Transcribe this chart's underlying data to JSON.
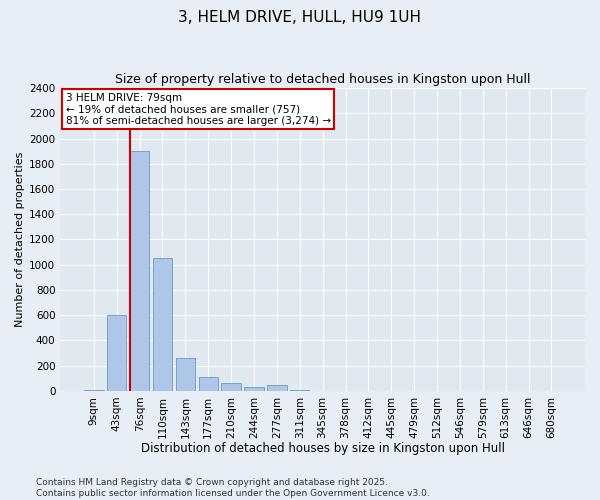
{
  "title": "3, HELM DRIVE, HULL, HU9 1UH",
  "subtitle": "Size of property relative to detached houses in Kingston upon Hull",
  "xlabel": "Distribution of detached houses by size in Kingston upon Hull",
  "ylabel": "Number of detached properties",
  "categories": [
    "9sqm",
    "43sqm",
    "76sqm",
    "110sqm",
    "143sqm",
    "177sqm",
    "210sqm",
    "244sqm",
    "277sqm",
    "311sqm",
    "345sqm",
    "378sqm",
    "412sqm",
    "445sqm",
    "479sqm",
    "512sqm",
    "546sqm",
    "579sqm",
    "613sqm",
    "646sqm",
    "680sqm"
  ],
  "values": [
    10,
    600,
    1900,
    1050,
    260,
    110,
    60,
    30,
    50,
    10,
    0,
    0,
    0,
    0,
    0,
    0,
    0,
    0,
    0,
    0,
    0
  ],
  "bar_color": "#aec6e8",
  "bar_edge_color": "#5b8db8",
  "property_line_color": "#cc0000",
  "annotation_text": "3 HELM DRIVE: 79sqm\n← 19% of detached houses are smaller (757)\n81% of semi-detached houses are larger (3,274) →",
  "annotation_box_color": "#ffffff",
  "annotation_box_edge": "#cc0000",
  "ylim": [
    0,
    2400
  ],
  "yticks": [
    0,
    200,
    400,
    600,
    800,
    1000,
    1200,
    1400,
    1600,
    1800,
    2000,
    2200,
    2400
  ],
  "background_color": "#e0e8f0",
  "fig_background_color": "#e8eef5",
  "footer_text": "Contains HM Land Registry data © Crown copyright and database right 2025.\nContains public sector information licensed under the Open Government Licence v3.0.",
  "title_fontsize": 11,
  "subtitle_fontsize": 9,
  "xlabel_fontsize": 8.5,
  "ylabel_fontsize": 8,
  "tick_fontsize": 7.5,
  "footer_fontsize": 6.5,
  "annotation_fontsize": 7.5
}
